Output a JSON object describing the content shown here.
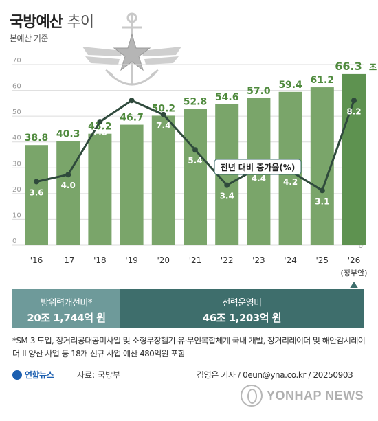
{
  "header": {
    "title_main": "국방예산",
    "title_sub": "추이",
    "basis": "본예산 기준"
  },
  "colors": {
    "bar": "#7aa56a",
    "bar_highlight": "#5e9250",
    "line": "#2f4a3c",
    "band_left": "#6e9a9a",
    "band_right": "#3e6e6c"
  },
  "chart_data": {
    "type": "bar",
    "categories": [
      "'16",
      "'17",
      "'18",
      "'19",
      "'20",
      "'21",
      "'22",
      "'23",
      "'24",
      "'25",
      "'26"
    ],
    "category_note": "(정부안)",
    "ylim": [
      0,
      70
    ],
    "yticks": [
      0,
      10,
      20,
      30,
      40,
      50,
      60,
      70
    ],
    "ylim_right": [
      0,
      10
    ],
    "yticks_right": [
      0,
      2,
      4,
      6,
      8
    ],
    "grid": true,
    "series": [
      {
        "values": [
          38.8,
          40.3,
          43.2,
          46.7,
          50.2,
          52.8,
          54.6,
          57.0,
          59.4,
          61.2,
          66.3
        ],
        "labels": [
          "38.8",
          "40.3",
          "43.2",
          "46.7",
          "50.2",
          "52.8",
          "54.6",
          "57.0",
          "59.4",
          "61.2",
          "66.3"
        ],
        "unit_last": "조 원"
      },
      {
        "name": "전년 대비 증가율(%)",
        "type": "line",
        "axis": "right",
        "values": [
          3.6,
          4.0,
          7.0,
          8.2,
          7.4,
          5.4,
          3.4,
          4.4,
          4.2,
          3.1,
          8.2
        ],
        "labels": [
          "3.6",
          "4.0",
          "7.0",
          "8.2",
          "7.4",
          "5.4",
          "3.4",
          "4.4",
          "4.2",
          "3.1",
          "8.2"
        ]
      }
    ]
  },
  "breakdown": {
    "left_label": "방위력개선비*",
    "left_value": "20조 1,744억 원",
    "right_label": "전력운영비",
    "right_value": "46조 1,203억 원"
  },
  "footnote": "*SM-3 도입, 장거리공대공미사일 및 소형무장헬기 유·무인복합체계 국내 개발, 장거리레이더 및 해안감시레이더-II 양산 사업 등 18개 신규 사업 예산 480억원 포함",
  "footer": {
    "logo": "연합뉴스",
    "source": "자료: 국방부",
    "credit": "김영은 기자 / 0eun@yna.co.kr / 20250903",
    "watermark": "YONHAP NEWS"
  }
}
